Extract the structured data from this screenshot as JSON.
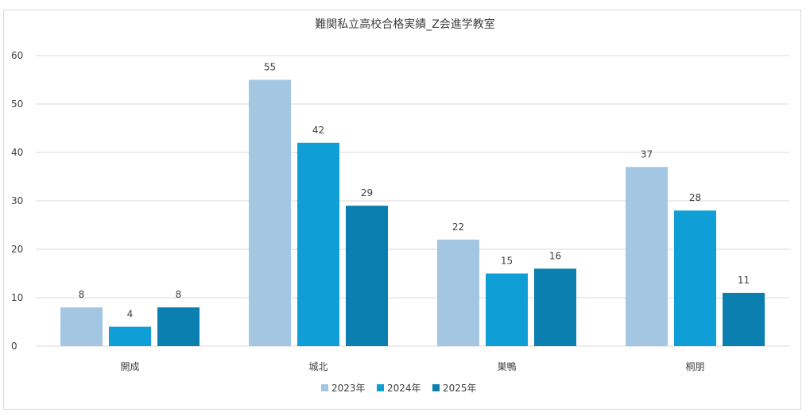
{
  "chart_data": {
    "type": "bar",
    "title": "難関私立高校合格実績_Z会進学教室",
    "categories": [
      "開成",
      "城北",
      "巣鴨",
      "桐朋"
    ],
    "series": [
      {
        "name": "2023年",
        "values": [
          8,
          55,
          22,
          37
        ],
        "color": "#a3c7e3"
      },
      {
        "name": "2024年",
        "values": [
          4,
          42,
          15,
          28
        ],
        "color": "#0f9fd6"
      },
      {
        "name": "2025年",
        "values": [
          8,
          29,
          16,
          11
        ],
        "color": "#0b80b0"
      }
    ],
    "ylim": [
      0,
      60
    ],
    "yticks": [
      0,
      10,
      20,
      30,
      40,
      50,
      60
    ],
    "xlabel": "",
    "ylabel": "",
    "grid": true,
    "legend_position": "bottom-center",
    "data_labels": true
  }
}
